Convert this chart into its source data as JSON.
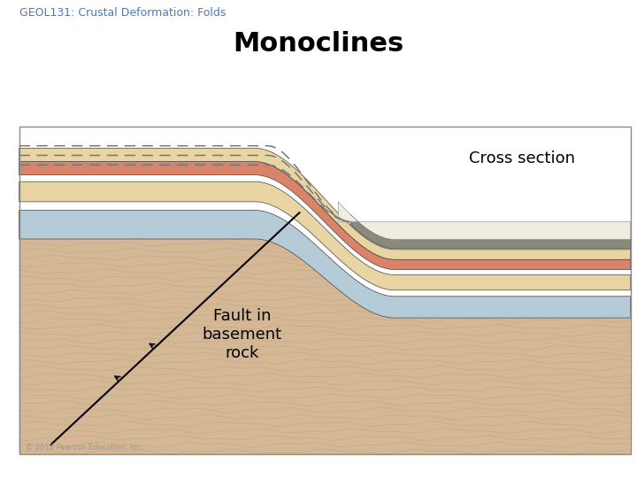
{
  "title": "Monoclines",
  "subtitle": "GEOL131: Crustal Deformation: Folds",
  "cross_section_label": "Cross section",
  "fault_label": "Fault in\nbasement\nrock",
  "copyright": "© 2012 Pearson Education, Inc.",
  "bg_color": "#ffffff",
  "colors": {
    "basement_sand": "#d4b896",
    "blue_layer": "#b5ccd8",
    "cream_layer": "#e8d5a3",
    "red_layer": "#d9836a",
    "dark_gray_layer": "#8a8a7a",
    "white_cream": "#f0ede0",
    "dashed_line": "#888888"
  },
  "title_fontsize": 22,
  "subtitle_fontsize": 9,
  "label_fontsize": 13,
  "cross_section_fontsize": 13,
  "copyright_fontsize": 6
}
